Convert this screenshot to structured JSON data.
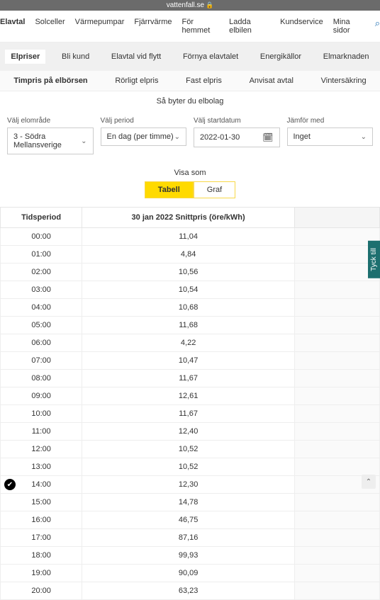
{
  "topbar": {
    "domain": "vattenfall.se"
  },
  "mainnav": {
    "items": [
      "Elavtal",
      "Solceller",
      "Värmepumpar",
      "Fjärrvärme",
      "För hemmet",
      "Ladda elbilen",
      "Kundservice",
      "Mina sidor"
    ],
    "active_index": 0
  },
  "subnav": {
    "items": [
      "Elpriser",
      "Bli kund",
      "Elavtal vid flytt",
      "Förnya elavtalet",
      "Energikällor",
      "Elmarknaden"
    ],
    "active_index": 0
  },
  "subnav2": {
    "items": [
      "Timpris på elbörsen",
      "Rörligt elpris",
      "Fast elpris",
      "Anvisat avtal",
      "Vintersäkring"
    ],
    "active_index": 0
  },
  "switch_text": "Så byter du elbolag",
  "filters": {
    "area": {
      "label": "Välj elområde",
      "value": "3 - Södra Mellansverige"
    },
    "period": {
      "label": "Välj period",
      "value": "En dag (per timme)"
    },
    "startdate": {
      "label": "Välj startdatum",
      "value": "2022-01-30"
    },
    "compare": {
      "label": "Jämför med",
      "value": "Inget"
    }
  },
  "showas": {
    "label": "Visa som",
    "tab1": "Tabell",
    "tab2": "Graf"
  },
  "table": {
    "col1": "Tidsperiod",
    "col2": "30 jan 2022 Snittpris (öre/kWh)",
    "rows": [
      [
        "00:00",
        "11,04"
      ],
      [
        "01:00",
        "4,84"
      ],
      [
        "02:00",
        "10,56"
      ],
      [
        "03:00",
        "10,54"
      ],
      [
        "04:00",
        "10,68"
      ],
      [
        "05:00",
        "11,68"
      ],
      [
        "06:00",
        "4,22"
      ],
      [
        "07:00",
        "10,47"
      ],
      [
        "08:00",
        "11,67"
      ],
      [
        "09:00",
        "12,61"
      ],
      [
        "10:00",
        "11,67"
      ],
      [
        "11:00",
        "12,40"
      ],
      [
        "12:00",
        "10,52"
      ],
      [
        "13:00",
        "10,52"
      ],
      [
        "14:00",
        "12,30"
      ],
      [
        "15:00",
        "14,78"
      ],
      [
        "16:00",
        "46,75"
      ],
      [
        "17:00",
        "87,16"
      ],
      [
        "18:00",
        "99,93"
      ],
      [
        "19:00",
        "90,09"
      ],
      [
        "20:00",
        "63,23"
      ]
    ]
  },
  "feedback": "Tyck till"
}
